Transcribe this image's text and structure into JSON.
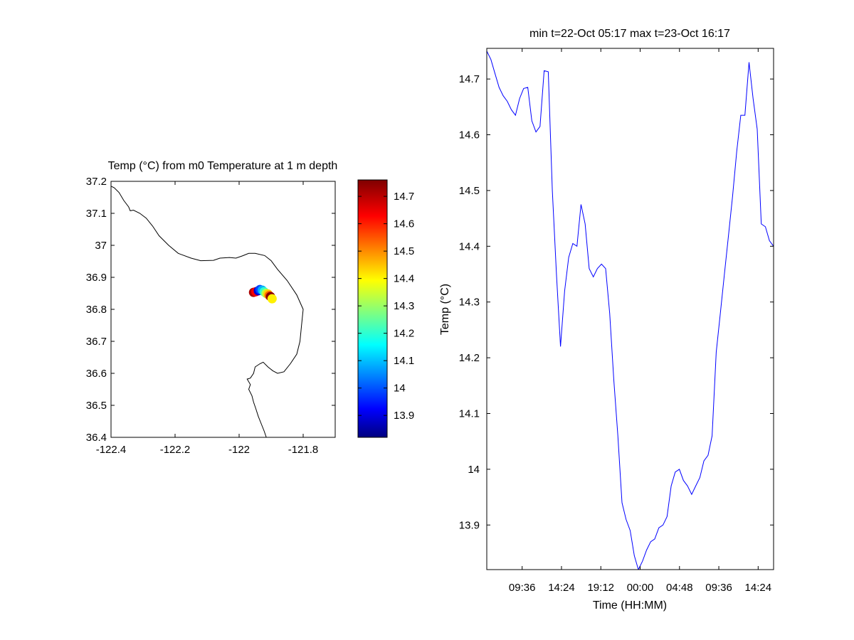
{
  "chart_data": [
    {
      "type": "scatter",
      "title": "Temp (°C) from m0 Temperature at 1 m depth",
      "xlim": [
        -122.4,
        -121.7
      ],
      "ylim": [
        36.4,
        37.2
      ],
      "xticks": [
        -122.4,
        -122.2,
        -122,
        -121.8
      ],
      "xtick_labels": [
        "-122.4",
        "-122.2",
        "-122",
        "-121.8"
      ],
      "yticks": [
        36.4,
        36.5,
        36.6,
        36.7,
        36.8,
        36.9,
        37,
        37.1,
        37.2
      ],
      "ytick_labels": [
        "36.4",
        "36.5",
        "36.6",
        "36.7",
        "36.8",
        "36.9",
        "37",
        "37.1",
        "37.2"
      ],
      "colormap": "jet",
      "clim": [
        13.82,
        14.76
      ],
      "colorbar_ticks": [
        13.9,
        14,
        14.1,
        14.2,
        14.3,
        14.4,
        14.5,
        14.6,
        14.7
      ],
      "colorbar_tick_labels": [
        "13.9",
        "14",
        "14.1",
        "14.2",
        "14.3",
        "14.4",
        "14.5",
        "14.6",
        "14.7"
      ],
      "coastline_color": "#000000",
      "coastline": [
        [
          -122.4,
          37.185
        ],
        [
          -122.39,
          37.18
        ],
        [
          -122.375,
          37.165
        ],
        [
          -122.36,
          37.14
        ],
        [
          -122.345,
          37.12
        ],
        [
          -122.34,
          37.108
        ],
        [
          -122.33,
          37.11
        ],
        [
          -122.31,
          37.1
        ],
        [
          -122.29,
          37.085
        ],
        [
          -122.27,
          37.06
        ],
        [
          -122.25,
          37.03
        ],
        [
          -122.22,
          37.0
        ],
        [
          -122.19,
          36.975
        ],
        [
          -122.15,
          36.96
        ],
        [
          -122.12,
          36.952
        ],
        [
          -122.08,
          36.953
        ],
        [
          -122.06,
          36.96
        ],
        [
          -122.03,
          36.962
        ],
        [
          -122.01,
          36.96
        ],
        [
          -121.99,
          36.967
        ],
        [
          -121.97,
          36.975
        ],
        [
          -121.95,
          36.975
        ],
        [
          -121.92,
          36.968
        ],
        [
          -121.9,
          36.952
        ],
        [
          -121.88,
          36.925
        ],
        [
          -121.85,
          36.89
        ],
        [
          -121.82,
          36.845
        ],
        [
          -121.8,
          36.8
        ],
        [
          -121.805,
          36.75
        ],
        [
          -121.81,
          36.7
        ],
        [
          -121.82,
          36.66
        ],
        [
          -121.84,
          36.63
        ],
        [
          -121.86,
          36.605
        ],
        [
          -121.88,
          36.6
        ],
        [
          -121.895,
          36.608
        ],
        [
          -121.91,
          36.62
        ],
        [
          -121.925,
          36.635
        ],
        [
          -121.935,
          36.63
        ],
        [
          -121.95,
          36.62
        ],
        [
          -121.955,
          36.6
        ],
        [
          -121.965,
          36.585
        ],
        [
          -121.975,
          36.582
        ],
        [
          -121.965,
          36.565
        ],
        [
          -121.97,
          36.55
        ],
        [
          -121.96,
          36.53
        ],
        [
          -121.955,
          36.51
        ],
        [
          -121.948,
          36.49
        ],
        [
          -121.94,
          36.465
        ],
        [
          -121.93,
          36.44
        ],
        [
          -121.922,
          36.42
        ],
        [
          -121.915,
          36.4
        ]
      ],
      "points": [
        {
          "x": -121.955,
          "y": 36.853,
          "value": 14.72
        },
        {
          "x": -121.948,
          "y": 36.855,
          "value": 14.65
        },
        {
          "x": -121.94,
          "y": 36.858,
          "value": 13.9
        },
        {
          "x": -121.935,
          "y": 36.862,
          "value": 14.0
        },
        {
          "x": -121.928,
          "y": 36.86,
          "value": 14.1
        },
        {
          "x": -121.922,
          "y": 36.855,
          "value": 14.22
        },
        {
          "x": -121.916,
          "y": 36.85,
          "value": 14.34
        },
        {
          "x": -121.91,
          "y": 36.848,
          "value": 14.45
        },
        {
          "x": -121.906,
          "y": 36.843,
          "value": 14.55
        },
        {
          "x": -121.902,
          "y": 36.84,
          "value": 14.75
        },
        {
          "x": -121.897,
          "y": 36.833,
          "value": 14.42
        }
      ]
    },
    {
      "type": "line",
      "title": "min t=22-Oct 05:17 max t=23-Oct 16:17",
      "xlabel": "Time (HH:MM)",
      "ylabel": "Temp (°C)",
      "x_unit": "hours from 22-Oct 00:00",
      "xlim": [
        5.283,
        40.283
      ],
      "ylim": [
        13.82,
        14.755
      ],
      "xticks": [
        9.6,
        14.4,
        19.2,
        24.0,
        28.8,
        33.6,
        38.4
      ],
      "xtick_labels": [
        "09:36",
        "14:24",
        "19:12",
        "00:00",
        "04:48",
        "09:36",
        "14:24"
      ],
      "yticks": [
        13.9,
        14,
        14.1,
        14.2,
        14.3,
        14.4,
        14.5,
        14.6,
        14.7
      ],
      "ytick_labels": [
        "13.9",
        "14",
        "14.1",
        "14.2",
        "14.3",
        "14.4",
        "14.5",
        "14.6",
        "14.7"
      ],
      "line_color": "#0000ff",
      "series": [
        {
          "x": [
            5.283,
            5.783,
            6.283,
            6.783,
            7.283,
            7.783,
            8.283,
            8.783,
            9.283,
            9.783,
            10.283,
            10.783,
            11.283,
            11.783,
            12.283,
            12.783,
            13.283,
            13.783,
            14.283,
            14.783,
            15.283,
            15.783,
            16.283,
            16.783,
            17.283,
            17.783,
            18.283,
            18.783,
            19.283,
            19.783,
            20.283,
            20.783,
            21.283,
            21.783,
            22.283,
            22.783,
            23.283,
            23.783,
            24.283,
            24.783,
            25.283,
            25.783,
            26.283,
            26.783,
            27.283,
            27.783,
            28.283,
            28.783,
            29.283,
            29.783,
            30.283,
            30.783,
            31.283,
            31.783,
            32.283,
            32.783,
            33.283,
            33.783,
            34.283,
            34.783,
            35.283,
            35.783,
            36.283,
            36.783,
            37.283,
            37.783,
            38.283,
            38.783,
            39.283,
            39.783,
            40.283
          ],
          "y": [
            14.75,
            14.735,
            14.71,
            14.685,
            14.67,
            14.66,
            14.645,
            14.635,
            14.665,
            14.683,
            14.685,
            14.625,
            14.605,
            14.615,
            14.715,
            14.713,
            14.5,
            14.35,
            14.22,
            14.32,
            14.38,
            14.405,
            14.4,
            14.475,
            14.44,
            14.36,
            14.345,
            14.36,
            14.368,
            14.36,
            14.28,
            14.16,
            14.06,
            13.94,
            13.91,
            13.89,
            13.845,
            13.82,
            13.835,
            13.855,
            13.87,
            13.875,
            13.895,
            13.9,
            13.915,
            13.97,
            13.995,
            14.0,
            13.98,
            13.97,
            13.955,
            13.97,
            13.985,
            14.015,
            14.025,
            14.06,
            14.21,
            14.28,
            14.35,
            14.42,
            14.49,
            14.57,
            14.635,
            14.635,
            14.73,
            14.665,
            14.61,
            14.44,
            14.435,
            14.41,
            14.4
          ]
        }
      ]
    }
  ]
}
